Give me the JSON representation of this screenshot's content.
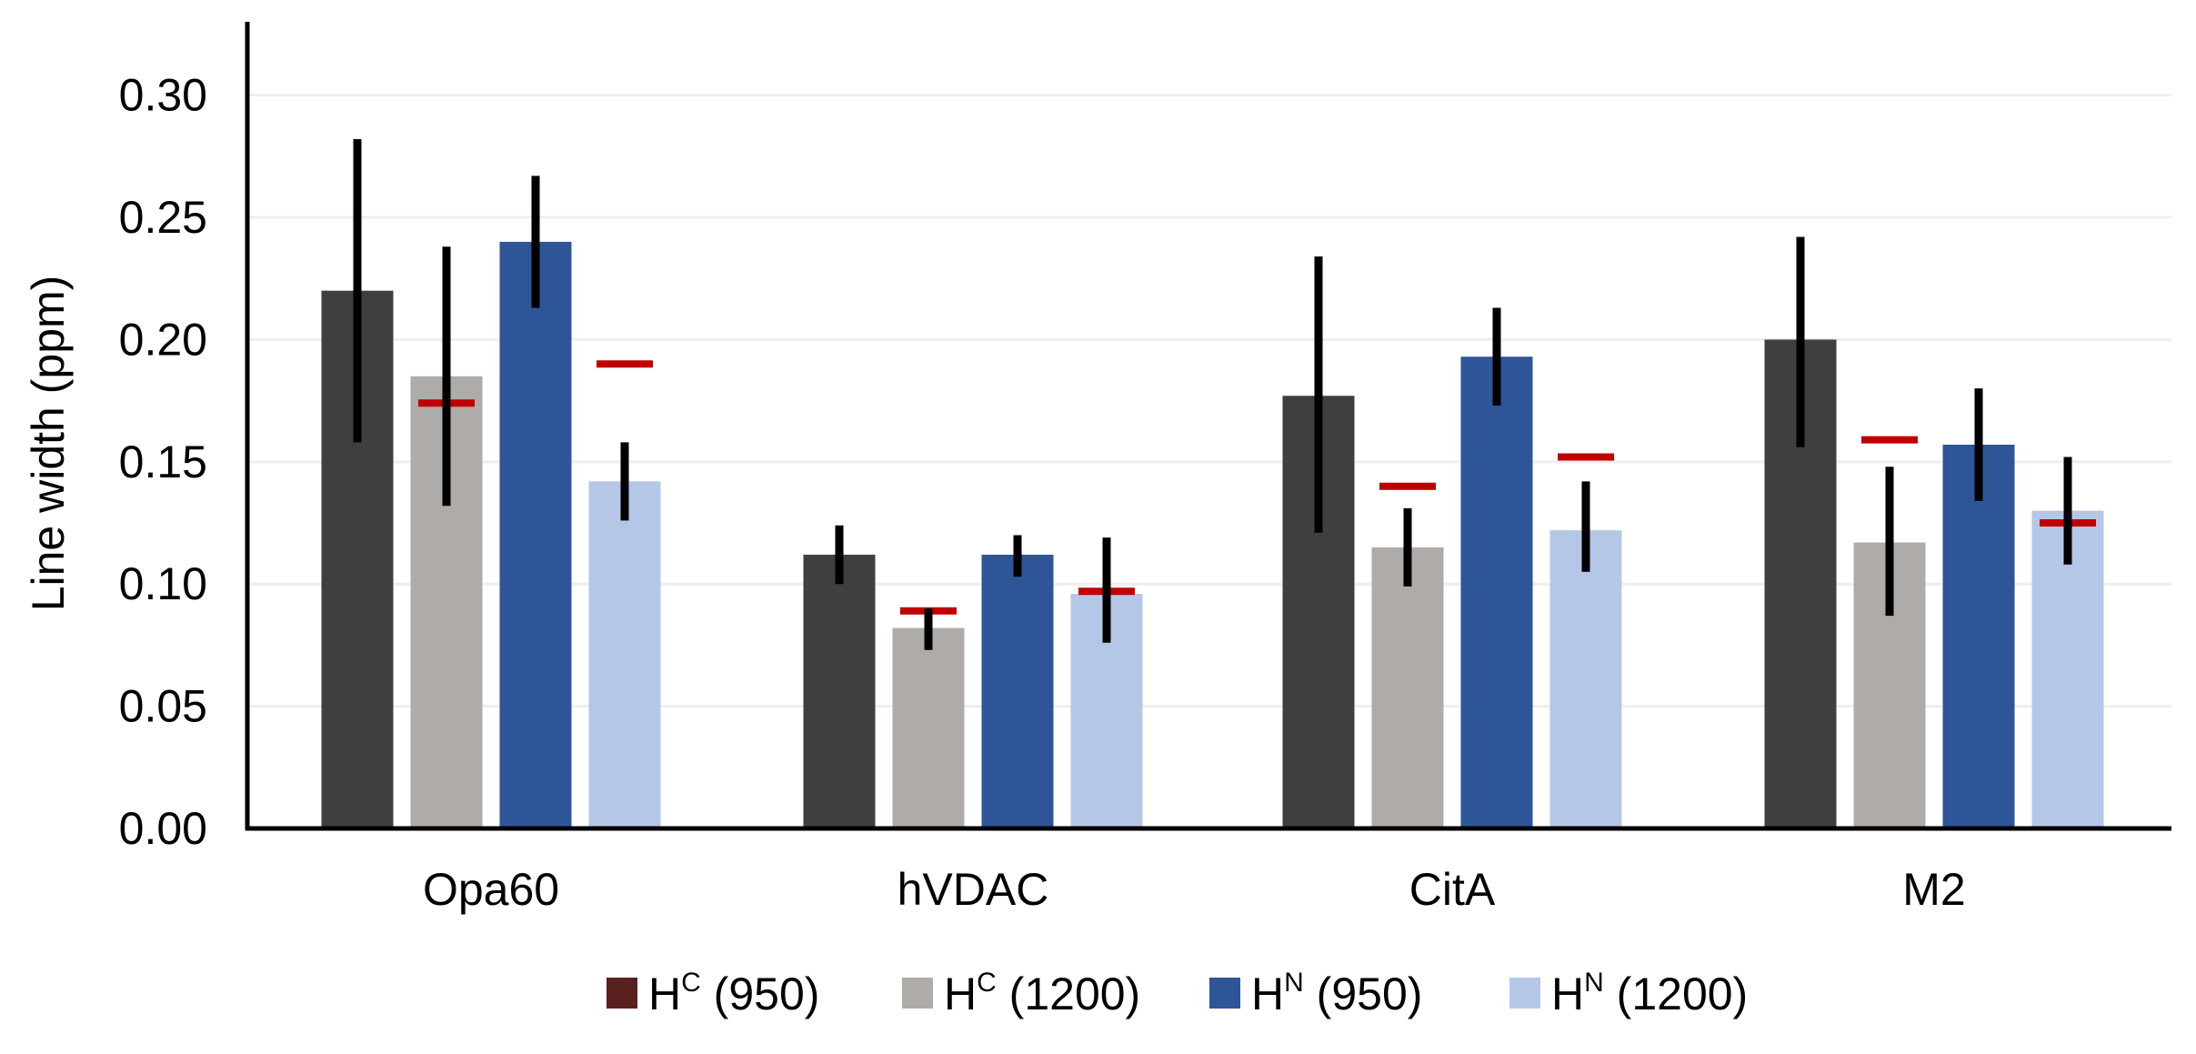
{
  "chart_data": {
    "type": "bar",
    "title": "",
    "xlabel": "",
    "ylabel": "Line width (ppm)",
    "ylim": [
      0,
      0.33
    ],
    "yticks": [
      "0.00",
      "0.05",
      "0.10",
      "0.15",
      "0.20",
      "0.25",
      "0.30"
    ],
    "categories": [
      "Opa60",
      "hVDAC",
      "CitA",
      "M2"
    ],
    "grid": "horizontal",
    "legend_position": "bottom",
    "series": [
      {
        "name_main": "H",
        "name_sup": "C",
        "name_rest": " (950)",
        "color": "#3f3f3f",
        "legend_color": "#5a1f1f",
        "values": [
          0.22,
          0.112,
          0.177,
          0.2
        ],
        "err_low": [
          0.158,
          0.1,
          0.121,
          0.156
        ],
        "err_high": [
          0.282,
          0.124,
          0.234,
          0.242
        ]
      },
      {
        "name_main": "H",
        "name_sup": "C",
        "name_rest": " (1200)",
        "color": "#afaba9",
        "legend_color": "#afaba9",
        "values": [
          0.185,
          0.082,
          0.115,
          0.117
        ],
        "err_low": [
          0.132,
          0.073,
          0.099,
          0.087
        ],
        "err_high": [
          0.238,
          0.09,
          0.131,
          0.148
        ],
        "reference": [
          0.174,
          0.089,
          0.14,
          0.159
        ]
      },
      {
        "name_main": "H",
        "name_sup": "N",
        "name_rest": " (950)",
        "color": "#2e5597",
        "legend_color": "#2e5597",
        "values": [
          0.24,
          0.112,
          0.193,
          0.157
        ],
        "err_low": [
          0.213,
          0.103,
          0.173,
          0.134
        ],
        "err_high": [
          0.267,
          0.12,
          0.213,
          0.18
        ],
        "reference": [
          null,
          null,
          null,
          null
        ]
      },
      {
        "name_main": "H",
        "name_sup": "N",
        "name_rest": " (1200)",
        "color": "#b4c7e7",
        "legend_color": "#b4c7e7",
        "values": [
          0.142,
          0.096,
          0.122,
          0.13
        ],
        "err_low": [
          0.126,
          0.076,
          0.105,
          0.108
        ],
        "err_high": [
          0.158,
          0.119,
          0.142,
          0.152
        ],
        "reference": [
          0.19,
          0.097,
          0.152,
          0.125
        ]
      }
    ],
    "colors": {
      "error_bar": "#000000",
      "reference_marker": "#c00000",
      "axis": "#000000",
      "grid": "#eeeeee",
      "text": "#000000"
    }
  }
}
